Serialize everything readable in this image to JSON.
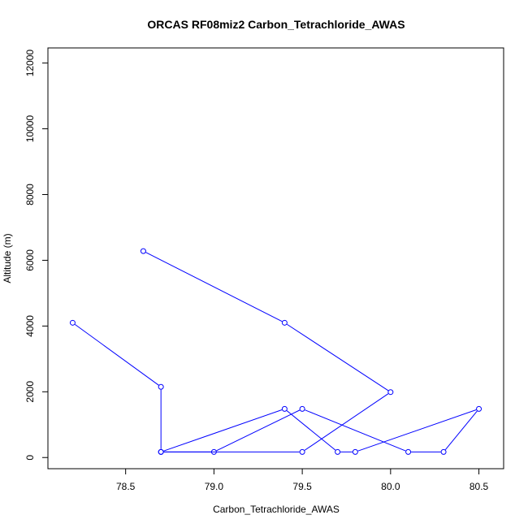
{
  "chart_data": {
    "type": "line",
    "title": "ORCAS RF08miz2 Carbon_Tetrachloride_AWAS",
    "xlabel": "Carbon_Tetrachloride_AWAS",
    "ylabel": "Altitude (m)",
    "xlim": [
      78.06,
      80.64
    ],
    "ylim": [
      -340,
      12460
    ],
    "x_ticks": [
      78.5,
      79.0,
      79.5,
      80.0,
      80.5
    ],
    "x_tick_labels": [
      "78.5",
      "79.0",
      "79.5",
      "80.0",
      "80.5"
    ],
    "y_ticks": [
      0,
      2000,
      4000,
      6000,
      8000,
      10000,
      12000
    ],
    "y_tick_labels": [
      "0",
      "2000",
      "4000",
      "6000",
      "8000",
      "10000",
      "12000"
    ],
    "grid": false,
    "series": [
      {
        "color": "#0000ff",
        "marker": "open-circle",
        "points": [
          {
            "x": 78.6,
            "y": 6280
          },
          {
            "x": 79.4,
            "y": 4100
          },
          {
            "x": 80.0,
            "y": 1990
          },
          {
            "x": 79.5,
            "y": 170
          },
          {
            "x": 78.7,
            "y": 170
          },
          {
            "x": 79.4,
            "y": 1480
          },
          {
            "x": 79.7,
            "y": 170
          },
          {
            "x": 79.8,
            "y": 170
          },
          {
            "x": 80.5,
            "y": 1480
          },
          {
            "x": 80.3,
            "y": 170
          },
          {
            "x": 80.1,
            "y": 170
          },
          {
            "x": 79.5,
            "y": 1480
          },
          {
            "x": 79.0,
            "y": 170
          },
          {
            "x": 78.7,
            "y": 170
          },
          {
            "x": 78.7,
            "y": 2150
          },
          {
            "x": 78.2,
            "y": 4100
          }
        ]
      }
    ]
  }
}
